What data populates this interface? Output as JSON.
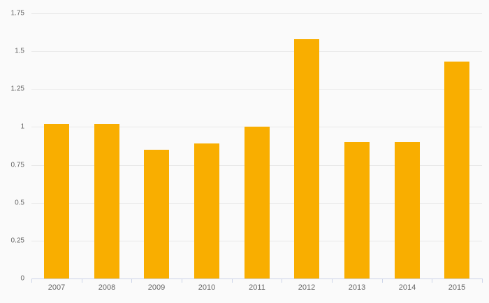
{
  "chart_data": {
    "type": "bar",
    "title": "",
    "xlabel": "",
    "ylabel": "",
    "categories": [
      "2007",
      "2008",
      "2009",
      "2010",
      "2011",
      "2012",
      "2013",
      "2014",
      "2015"
    ],
    "values": [
      1.02,
      1.02,
      0.85,
      0.89,
      1.0,
      1.58,
      0.9,
      0.9,
      1.43
    ],
    "ylim": [
      0,
      1.75
    ],
    "ytick_labels": [
      "0",
      "0.25",
      "0.5",
      "0.75",
      "1",
      "1.25",
      "1.5",
      "1.75"
    ],
    "ytick_values": [
      0,
      0.25,
      0.5,
      0.75,
      1,
      1.25,
      1.5,
      1.75
    ],
    "grid": true,
    "legend": false,
    "colors": {
      "bar": "#f9ae00",
      "background": "#fafafa",
      "gridline": "#e9e9e9",
      "axis_line": "#ccd4e8",
      "label": "#666666"
    }
  }
}
